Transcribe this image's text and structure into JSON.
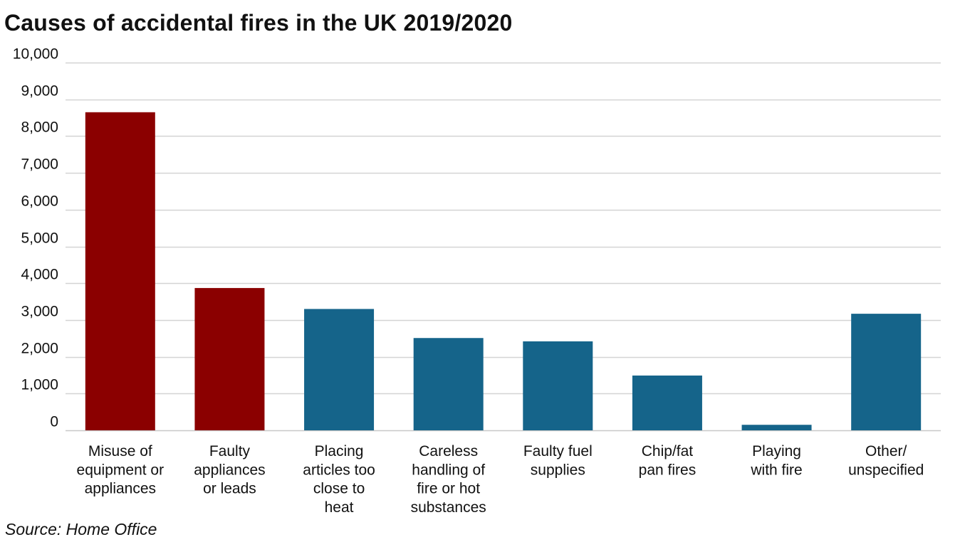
{
  "chart_data": {
    "type": "bar",
    "title": "Causes of accidental fires in the UK 2019/2020",
    "source": "Source: Home Office",
    "categories": [
      [
        "Misuse of",
        "equipment or",
        "appliances"
      ],
      [
        "Faulty",
        "appliances",
        "or leads"
      ],
      [
        "Placing",
        "articles too",
        "close to",
        "heat"
      ],
      [
        "Careless",
        "handling of",
        "fire or hot",
        "substances"
      ],
      [
        "Faulty fuel",
        "supplies"
      ],
      [
        "Chip/fat",
        "pan fires"
      ],
      [
        "Playing",
        "with fire"
      ],
      [
        "Other/",
        "unspecified"
      ]
    ],
    "values": [
      8650,
      3870,
      3300,
      2510,
      2420,
      1490,
      150,
      3170
    ],
    "bar_colors": [
      "#8b0000",
      "#8b0000",
      "#15648a",
      "#15648a",
      "#15648a",
      "#15648a",
      "#15648a",
      "#15648a"
    ],
    "ylim": [
      0,
      10000
    ],
    "yticks": [
      0,
      1000,
      2000,
      3000,
      4000,
      5000,
      6000,
      7000,
      8000,
      9000,
      10000
    ],
    "ytick_labels": [
      "0",
      "1,000",
      "2,000",
      "3,000",
      "4,000",
      "5,000",
      "6,000",
      "7,000",
      "8,000",
      "9,000",
      "10,000"
    ],
    "grid": true,
    "xlabel": "",
    "ylabel": ""
  }
}
